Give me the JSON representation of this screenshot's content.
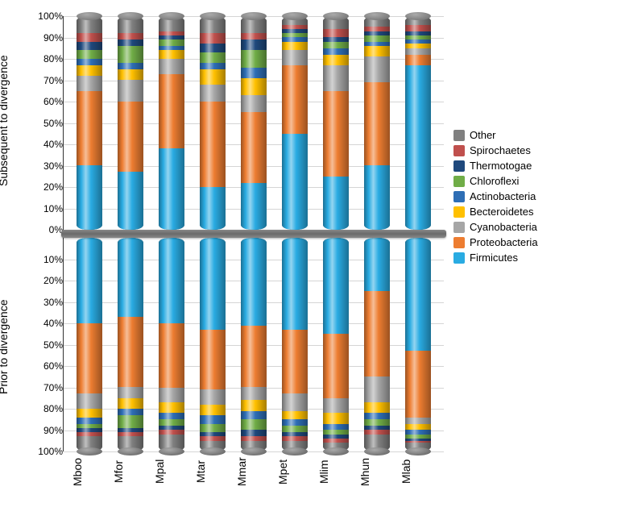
{
  "chart": {
    "type": "stacked-bar-mirrored",
    "ylabel_top": "Subsequent to divergence",
    "ylabel_bottom": "Prior to divergence",
    "yticks_top": [
      "100%",
      "90%",
      "80%",
      "70%",
      "60%",
      "50%",
      "40%",
      "30%",
      "20%",
      "10%",
      "0%"
    ],
    "yticks_bottom": [
      "10%",
      "20%",
      "30%",
      "40%",
      "50%",
      "60%",
      "70%",
      "80%",
      "90%",
      "100%"
    ],
    "categories": [
      "Mboo",
      "Mfor",
      "Mpal",
      "Mtar",
      "Mmar",
      "Mpet",
      "Mlim",
      "Mhun",
      "Mlab"
    ],
    "series": [
      {
        "key": "Other",
        "color": "#808080"
      },
      {
        "key": "Spirochaetes",
        "color": "#c0504d"
      },
      {
        "key": "Thermotogae",
        "color": "#1f497d"
      },
      {
        "key": "Chloroflexi",
        "color": "#70ad47"
      },
      {
        "key": "Actinobacteria",
        "color": "#2e6eb5"
      },
      {
        "key": "Becteroidetes",
        "color": "#ffc000"
      },
      {
        "key": "Cyanobacteria",
        "color": "#a6a6a6"
      },
      {
        "key": "Proteobacteria",
        "color": "#ed7d31"
      },
      {
        "key": "Firmicutes",
        "color": "#29abe2"
      }
    ],
    "top_data": {
      "Mboo": {
        "Firmicutes": 30,
        "Proteobacteria": 35,
        "Cyanobacteria": 7,
        "Becteroidetes": 5,
        "Actinobacteria": 3,
        "Chloroflexi": 4,
        "Thermotogae": 4,
        "Spirochaetes": 4,
        "Other": 8
      },
      "Mfor": {
        "Firmicutes": 27,
        "Proteobacteria": 33,
        "Cyanobacteria": 10,
        "Becteroidetes": 5,
        "Actinobacteria": 3,
        "Chloroflexi": 8,
        "Thermotogae": 3,
        "Spirochaetes": 3,
        "Other": 8
      },
      "Mpal": {
        "Firmicutes": 38,
        "Proteobacteria": 35,
        "Cyanobacteria": 7,
        "Becteroidetes": 4,
        "Actinobacteria": 2,
        "Chloroflexi": 3,
        "Thermotogae": 2,
        "Spirochaetes": 2,
        "Other": 7
      },
      "Mtar": {
        "Firmicutes": 20,
        "Proteobacteria": 40,
        "Cyanobacteria": 8,
        "Becteroidetes": 7,
        "Actinobacteria": 3,
        "Chloroflexi": 5,
        "Thermotogae": 4,
        "Spirochaetes": 5,
        "Other": 8
      },
      "Mmar": {
        "Firmicutes": 22,
        "Proteobacteria": 33,
        "Cyanobacteria": 8,
        "Becteroidetes": 8,
        "Actinobacteria": 5,
        "Chloroflexi": 8,
        "Thermotogae": 5,
        "Spirochaetes": 3,
        "Other": 8
      },
      "Mpet": {
        "Firmicutes": 45,
        "Proteobacteria": 32,
        "Cyanobacteria": 7,
        "Becteroidetes": 4,
        "Actinobacteria": 2,
        "Chloroflexi": 2,
        "Thermotogae": 2,
        "Spirochaetes": 2,
        "Other": 4
      },
      "Mlim": {
        "Firmicutes": 25,
        "Proteobacteria": 40,
        "Cyanobacteria": 12,
        "Becteroidetes": 5,
        "Actinobacteria": 3,
        "Chloroflexi": 3,
        "Thermotogae": 2,
        "Spirochaetes": 4,
        "Other": 6
      },
      "Mhun": {
        "Firmicutes": 30,
        "Proteobacteria": 39,
        "Cyanobacteria": 12,
        "Becteroidetes": 5,
        "Actinobacteria": 2,
        "Chloroflexi": 3,
        "Thermotogae": 2,
        "Spirochaetes": 2,
        "Other": 5
      },
      "Mlab": {
        "Firmicutes": 77,
        "Proteobacteria": 5,
        "Cyanobacteria": 3,
        "Becteroidetes": 2,
        "Actinobacteria": 2,
        "Chloroflexi": 2,
        "Thermotogae": 2,
        "Spirochaetes": 3,
        "Other": 4
      }
    },
    "bottom_data": {
      "Mboo": {
        "Firmicutes": 40,
        "Proteobacteria": 33,
        "Cyanobacteria": 7,
        "Becteroidetes": 4,
        "Actinobacteria": 3,
        "Chloroflexi": 2,
        "Thermotogae": 2,
        "Spirochaetes": 2,
        "Other": 7
      },
      "Mfor": {
        "Firmicutes": 37,
        "Proteobacteria": 33,
        "Cyanobacteria": 5,
        "Becteroidetes": 5,
        "Actinobacteria": 3,
        "Chloroflexi": 6,
        "Thermotogae": 2,
        "Spirochaetes": 2,
        "Other": 7
      },
      "Mpal": {
        "Firmicutes": 40,
        "Proteobacteria": 30,
        "Cyanobacteria": 7,
        "Becteroidetes": 5,
        "Actinobacteria": 3,
        "Chloroflexi": 3,
        "Thermotogae": 2,
        "Spirochaetes": 2,
        "Other": 8
      },
      "Mtar": {
        "Firmicutes": 43,
        "Proteobacteria": 28,
        "Cyanobacteria": 7,
        "Becteroidetes": 5,
        "Actinobacteria": 4,
        "Chloroflexi": 4,
        "Thermotogae": 2,
        "Spirochaetes": 2,
        "Other": 5
      },
      "Mmar": {
        "Firmicutes": 41,
        "Proteobacteria": 29,
        "Cyanobacteria": 6,
        "Becteroidetes": 5,
        "Actinobacteria": 4,
        "Chloroflexi": 5,
        "Thermotogae": 3,
        "Spirochaetes": 2,
        "Other": 5
      },
      "Mpet": {
        "Firmicutes": 43,
        "Proteobacteria": 30,
        "Cyanobacteria": 8,
        "Becteroidetes": 4,
        "Actinobacteria": 3,
        "Chloroflexi": 3,
        "Thermotogae": 2,
        "Spirochaetes": 2,
        "Other": 5
      },
      "Mlim": {
        "Firmicutes": 45,
        "Proteobacteria": 30,
        "Cyanobacteria": 7,
        "Becteroidetes": 5,
        "Actinobacteria": 3,
        "Chloroflexi": 2,
        "Thermotogae": 2,
        "Spirochaetes": 2,
        "Other": 4
      },
      "Mhun": {
        "Firmicutes": 25,
        "Proteobacteria": 40,
        "Cyanobacteria": 12,
        "Becteroidetes": 5,
        "Actinobacteria": 3,
        "Chloroflexi": 3,
        "Thermotogae": 2,
        "Spirochaetes": 2,
        "Other": 8
      },
      "Mlab": {
        "Firmicutes": 53,
        "Proteobacteria": 31,
        "Cyanobacteria": 3,
        "Becteroidetes": 3,
        "Actinobacteria": 2,
        "Chloroflexi": 2,
        "Thermotogae": 1,
        "Spirochaetes": 1,
        "Other": 4
      }
    }
  }
}
